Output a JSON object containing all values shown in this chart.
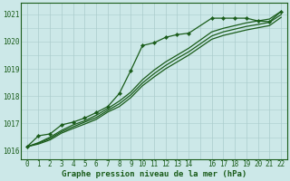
{
  "background_color": "#cce8e8",
  "grid_color": "#aacccc",
  "line_color": "#1a5c1a",
  "title": "Graphe pression niveau de la mer (hPa)",
  "xlim": [
    -0.5,
    22.5
  ],
  "ylim": [
    1015.7,
    1021.4
  ],
  "xticks": [
    0,
    1,
    2,
    3,
    4,
    5,
    6,
    7,
    8,
    9,
    10,
    11,
    12,
    13,
    14,
    16,
    17,
    18,
    19,
    20,
    21,
    22
  ],
  "yticks": [
    1016,
    1017,
    1018,
    1019,
    1020,
    1021
  ],
  "series": [
    {
      "x": [
        0,
        1,
        2,
        3,
        4,
        5,
        6,
        7,
        8,
        9,
        10,
        11,
        12,
        13,
        14,
        16,
        17,
        18,
        19,
        20,
        21,
        22
      ],
      "y": [
        1016.15,
        1016.55,
        1016.62,
        1016.95,
        1017.05,
        1017.2,
        1017.4,
        1017.62,
        1018.1,
        1018.95,
        1019.85,
        1019.95,
        1020.15,
        1020.25,
        1020.3,
        1020.85,
        1020.85,
        1020.85,
        1020.85,
        1020.75,
        1020.72,
        1021.1
      ],
      "with_markers": true
    },
    {
      "x": [
        0,
        1,
        2,
        3,
        4,
        5,
        6,
        7,
        8,
        9,
        10,
        11,
        12,
        13,
        14,
        16,
        17,
        18,
        19,
        20,
        21,
        22
      ],
      "y": [
        1016.15,
        1016.3,
        1016.5,
        1016.75,
        1016.95,
        1017.1,
        1017.3,
        1017.55,
        1017.82,
        1018.15,
        1018.6,
        1018.95,
        1019.25,
        1019.5,
        1019.75,
        1020.35,
        1020.48,
        1020.58,
        1020.68,
        1020.75,
        1020.82,
        1021.1
      ],
      "with_markers": false
    },
    {
      "x": [
        0,
        1,
        2,
        3,
        4,
        5,
        6,
        7,
        8,
        9,
        10,
        11,
        12,
        13,
        14,
        16,
        17,
        18,
        19,
        20,
        21,
        22
      ],
      "y": [
        1016.15,
        1016.28,
        1016.45,
        1016.7,
        1016.88,
        1017.05,
        1017.22,
        1017.48,
        1017.72,
        1018.05,
        1018.48,
        1018.82,
        1019.12,
        1019.38,
        1019.62,
        1020.2,
        1020.35,
        1020.45,
        1020.55,
        1020.62,
        1020.7,
        1020.98
      ],
      "with_markers": false
    },
    {
      "x": [
        0,
        1,
        2,
        3,
        4,
        5,
        6,
        7,
        8,
        9,
        10,
        11,
        12,
        13,
        14,
        16,
        17,
        18,
        19,
        20,
        21,
        22
      ],
      "y": [
        1016.15,
        1016.25,
        1016.4,
        1016.65,
        1016.82,
        1016.98,
        1017.15,
        1017.42,
        1017.62,
        1017.95,
        1018.38,
        1018.7,
        1019.0,
        1019.25,
        1019.5,
        1020.08,
        1020.22,
        1020.32,
        1020.42,
        1020.5,
        1020.58,
        1020.88
      ],
      "with_markers": false
    }
  ],
  "tick_fontsize": 5.5,
  "xlabel_fontsize": 6.5,
  "linewidth": 0.9,
  "markersize": 2.2
}
